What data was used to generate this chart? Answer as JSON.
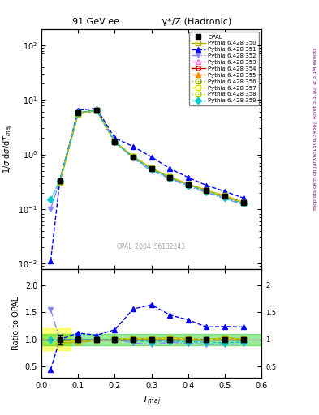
{
  "title_left": "91 GeV ee",
  "title_right": "γ*/Z (Hadronic)",
  "xlabel": "T_maj",
  "ylabel_main": "1/σ dσ/dT_maj",
  "ylabel_ratio": "Ratio to OPAL",
  "watermark": "OPAL_2004_S6132243",
  "right_label_top": "Rivet 3.1.10; ≥ 3.1M events",
  "right_label_bot": "mcplots.cern.ch [arXiv:1306.3436]",
  "xlim": [
    0.0,
    0.6
  ],
  "ylim_main": [
    0.008,
    200
  ],
  "ylim_ratio": [
    0.3,
    2.3
  ],
  "opal_x": [
    0.05,
    0.1,
    0.15,
    0.2,
    0.25,
    0.3,
    0.35,
    0.4,
    0.45,
    0.5,
    0.55
  ],
  "opal_y": [
    0.33,
    5.8,
    6.5,
    1.7,
    0.9,
    0.55,
    0.38,
    0.28,
    0.22,
    0.17,
    0.13
  ],
  "opal_yerr": [
    0.03,
    0.3,
    0.3,
    0.08,
    0.04,
    0.025,
    0.018,
    0.013,
    0.01,
    0.008,
    0.006
  ],
  "series": [
    {
      "label": "Pythia 6.428 350",
      "color": "#aaaa00",
      "linestyle": "-",
      "marker": "s",
      "markerfill": "none",
      "x": [
        0.05,
        0.1,
        0.15,
        0.2,
        0.25,
        0.3,
        0.35,
        0.4,
        0.45,
        0.5,
        0.55
      ],
      "y": [
        0.31,
        5.5,
        6.4,
        1.72,
        0.92,
        0.56,
        0.39,
        0.285,
        0.22,
        0.175,
        0.132
      ],
      "ratio": [
        0.94,
        0.95,
        0.985,
        1.01,
        1.02,
        1.02,
        1.03,
        1.02,
        1.0,
        1.03,
        1.015
      ]
    },
    {
      "label": "Pythia 6.428 351",
      "color": "#0000ff",
      "linestyle": "--",
      "marker": "^",
      "markerfill": "#0000ff",
      "x": [
        0.025,
        0.05,
        0.1,
        0.15,
        0.2,
        0.25,
        0.3,
        0.35,
        0.4,
        0.45,
        0.5,
        0.55
      ],
      "y": [
        0.011,
        0.33,
        6.5,
        7.0,
        2.0,
        1.4,
        0.9,
        0.55,
        0.38,
        0.27,
        0.21,
        0.16
      ],
      "ratio": [
        0.45,
        1.0,
        1.12,
        1.08,
        1.18,
        1.56,
        1.64,
        1.45,
        1.36,
        1.23,
        1.24,
        1.23
      ]
    },
    {
      "label": "Pythia 6.428 352",
      "color": "#8888ff",
      "linestyle": "-.",
      "marker": "v",
      "markerfill": "#8888ff",
      "x": [
        0.025,
        0.05,
        0.1,
        0.15,
        0.2,
        0.25,
        0.3,
        0.35,
        0.4,
        0.45,
        0.5,
        0.55
      ],
      "y": [
        0.1,
        0.33,
        5.8,
        6.5,
        1.7,
        0.85,
        0.5,
        0.36,
        0.26,
        0.2,
        0.155,
        0.12
      ],
      "ratio": [
        1.55,
        1.0,
        1.0,
        1.0,
        1.0,
        0.94,
        0.91,
        0.95,
        0.93,
        0.91,
        0.91,
        0.92
      ]
    },
    {
      "label": "Pythia 6.428 353",
      "color": "#ff66cc",
      "linestyle": "--",
      "marker": "^",
      "markerfill": "none",
      "x": [
        0.05,
        0.1,
        0.15,
        0.2,
        0.25,
        0.3,
        0.35,
        0.4,
        0.45,
        0.5,
        0.55
      ],
      "y": [
        0.33,
        5.7,
        6.5,
        1.7,
        0.9,
        0.55,
        0.38,
        0.28,
        0.22,
        0.17,
        0.13
      ],
      "ratio": [
        1.0,
        0.98,
        1.0,
        1.0,
        1.0,
        1.0,
        1.0,
        1.0,
        1.0,
        1.0,
        1.0
      ]
    },
    {
      "label": "Pythia 6.428 354",
      "color": "#cc0000",
      "linestyle": "-",
      "marker": "o",
      "markerfill": "none",
      "x": [
        0.05,
        0.1,
        0.15,
        0.2,
        0.25,
        0.3,
        0.35,
        0.4,
        0.45,
        0.5,
        0.55
      ],
      "y": [
        0.33,
        5.8,
        6.5,
        1.7,
        0.9,
        0.55,
        0.38,
        0.28,
        0.22,
        0.17,
        0.13
      ],
      "ratio": [
        1.0,
        1.0,
        1.0,
        1.0,
        1.0,
        1.0,
        1.0,
        1.0,
        1.0,
        1.0,
        1.0
      ]
    },
    {
      "label": "Pythia 6.428 355",
      "color": "#ff8800",
      "linestyle": "--",
      "marker": "^",
      "markerfill": "#ff8800",
      "x": [
        0.05,
        0.1,
        0.15,
        0.2,
        0.25,
        0.3,
        0.35,
        0.4,
        0.45,
        0.5,
        0.55
      ],
      "y": [
        0.34,
        5.6,
        6.5,
        1.7,
        0.9,
        0.55,
        0.38,
        0.28,
        0.22,
        0.17,
        0.13
      ],
      "ratio": [
        1.0,
        0.97,
        1.0,
        1.0,
        1.0,
        1.0,
        1.0,
        1.0,
        1.0,
        1.0,
        1.0
      ]
    },
    {
      "label": "Pythia 6.428 356",
      "color": "#88aa00",
      "linestyle": ":",
      "marker": "s",
      "markerfill": "none",
      "x": [
        0.05,
        0.1,
        0.15,
        0.2,
        0.25,
        0.3,
        0.35,
        0.4,
        0.45,
        0.5,
        0.55
      ],
      "y": [
        0.32,
        5.8,
        6.5,
        1.7,
        0.91,
        0.55,
        0.38,
        0.28,
        0.22,
        0.175,
        0.13
      ],
      "ratio": [
        0.97,
        1.0,
        1.0,
        1.0,
        1.01,
        1.0,
        1.0,
        1.0,
        1.0,
        1.03,
        1.0
      ]
    },
    {
      "label": "Pythia 6.428 357",
      "color": "#dddd00",
      "linestyle": "--",
      "marker": "s",
      "markerfill": "none",
      "x": [
        0.05,
        0.1,
        0.15,
        0.2,
        0.25,
        0.3,
        0.35,
        0.4,
        0.45,
        0.5,
        0.55
      ],
      "y": [
        0.31,
        5.7,
        6.4,
        1.72,
        0.92,
        0.56,
        0.385,
        0.283,
        0.22,
        0.173,
        0.131
      ],
      "ratio": [
        0.94,
        0.98,
        0.985,
        1.01,
        1.02,
        1.02,
        1.02,
        1.01,
        1.0,
        1.02,
        1.008
      ]
    },
    {
      "label": "Pythia 6.428 358",
      "color": "#aacc00",
      "linestyle": ":",
      "marker": "s",
      "markerfill": "none",
      "x": [
        0.05,
        0.1,
        0.15,
        0.2,
        0.25,
        0.3,
        0.35,
        0.4,
        0.45,
        0.5,
        0.55
      ],
      "y": [
        0.31,
        5.5,
        6.4,
        1.72,
        0.92,
        0.56,
        0.39,
        0.285,
        0.22,
        0.175,
        0.132
      ],
      "ratio": [
        0.94,
        0.95,
        0.985,
        1.01,
        1.02,
        1.02,
        1.03,
        1.02,
        1.0,
        1.03,
        1.015
      ]
    },
    {
      "label": "Pythia 6.428 359",
      "color": "#00cccc",
      "linestyle": "--",
      "marker": "D",
      "markerfill": "#00cccc",
      "x": [
        0.025,
        0.05,
        0.1,
        0.15,
        0.2,
        0.25,
        0.3,
        0.35,
        0.4,
        0.45,
        0.5,
        0.55
      ],
      "y": [
        0.15,
        0.33,
        5.8,
        6.5,
        1.7,
        0.88,
        0.53,
        0.37,
        0.27,
        0.21,
        0.16,
        0.125
      ],
      "ratio": [
        1.0,
        1.0,
        1.0,
        1.0,
        1.0,
        0.98,
        0.96,
        0.97,
        0.96,
        0.95,
        0.94,
        0.96
      ]
    }
  ]
}
